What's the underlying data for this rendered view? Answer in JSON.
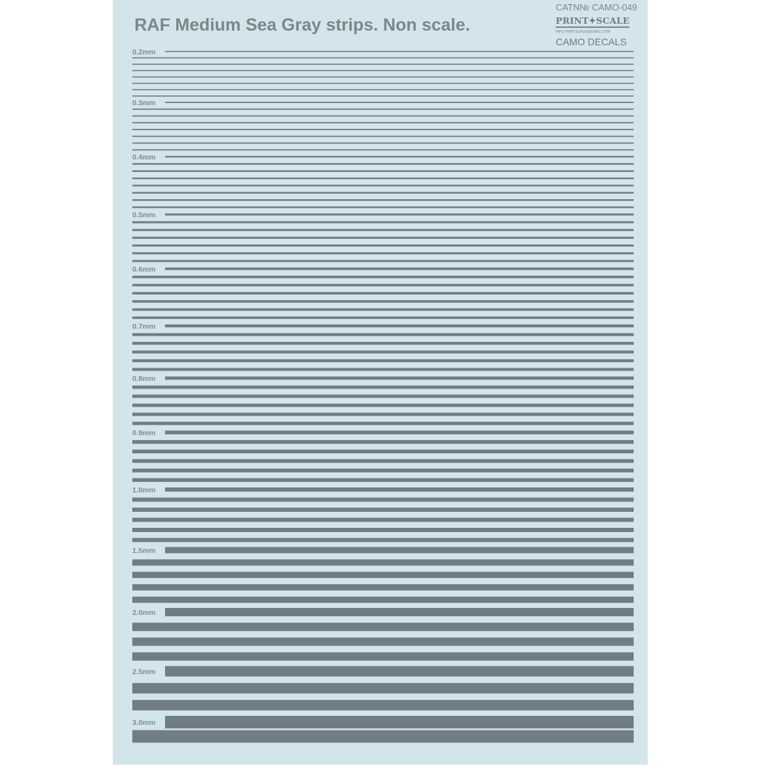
{
  "title": "RAF Medium Sea Gray strips. Non scale.",
  "catalog": "CATN№ CAMO-049",
  "brand": "PRINT✦SCALE",
  "email": "INFO.PRINTSCALE@GMAIL.COM",
  "series": "CAMO DECALS",
  "colors": {
    "background": "#d3e4ea",
    "strip": "#717d84",
    "text": "#7b878d"
  },
  "sections": [
    {
      "label": "0.2mm",
      "width_mm": 0.2,
      "count": 8
    },
    {
      "label": "0.3mm",
      "width_mm": 0.3,
      "count": 8
    },
    {
      "label": "0.4mm",
      "width_mm": 0.4,
      "count": 8
    },
    {
      "label": "0.5mm",
      "width_mm": 0.5,
      "count": 7
    },
    {
      "label": "0.6mm",
      "width_mm": 0.6,
      "count": 7
    },
    {
      "label": "0.7mm",
      "width_mm": 0.7,
      "count": 6
    },
    {
      "label": "0.8mm",
      "width_mm": 0.8,
      "count": 6
    },
    {
      "label": "0.9mm",
      "width_mm": 0.9,
      "count": 6
    },
    {
      "label": "1.0mm",
      "width_mm": 1.0,
      "count": 6
    },
    {
      "label": "1.5mm",
      "width_mm": 1.5,
      "count": 5
    },
    {
      "label": "2.0mm",
      "width_mm": 2.0,
      "count": 4
    },
    {
      "label": "2.5mm",
      "width_mm": 2.5,
      "count": 3
    },
    {
      "label": "3.0mm",
      "width_mm": 3.0,
      "count": 2
    }
  ]
}
